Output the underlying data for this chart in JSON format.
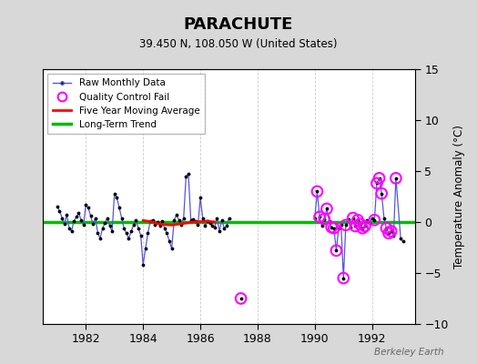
{
  "title": "PARACHUTE",
  "subtitle": "39.450 N, 108.050 W (United States)",
  "ylabel": "Temperature Anomaly (°C)",
  "watermark": "Berkeley Earth",
  "ylim": [
    -10,
    15
  ],
  "xlim": [
    1980.5,
    1993.5
  ],
  "yticks": [
    -10,
    -5,
    0,
    5,
    10,
    15
  ],
  "xticks": [
    1982,
    1984,
    1986,
    1988,
    1990,
    1992
  ],
  "bg_color": "#d8d8d8",
  "plot_bg_color": "#ffffff",
  "raw_segments": [
    [
      [
        1981.0,
        1.5
      ],
      [
        1981.083,
        1.1
      ],
      [
        1981.167,
        0.4
      ],
      [
        1981.25,
        -0.2
      ],
      [
        1981.333,
        0.7
      ],
      [
        1981.417,
        -0.6
      ],
      [
        1981.5,
        -0.9
      ],
      [
        1981.583,
        0.1
      ],
      [
        1981.667,
        0.5
      ],
      [
        1981.75,
        0.9
      ],
      [
        1981.833,
        0.2
      ],
      [
        1981.917,
        -0.3
      ],
      [
        1982.0,
        1.7
      ],
      [
        1982.083,
        1.4
      ],
      [
        1982.167,
        0.6
      ],
      [
        1982.25,
        -0.2
      ],
      [
        1982.333,
        0.4
      ],
      [
        1982.417,
        -1.1
      ],
      [
        1982.5,
        -1.6
      ],
      [
        1982.583,
        -0.6
      ],
      [
        1982.667,
        -0.1
      ],
      [
        1982.75,
        0.4
      ],
      [
        1982.833,
        -0.4
      ],
      [
        1982.917,
        -0.9
      ],
      [
        1983.0,
        2.8
      ],
      [
        1983.083,
        2.4
      ],
      [
        1983.167,
        1.4
      ],
      [
        1983.25,
        0.4
      ],
      [
        1983.333,
        -0.6
      ],
      [
        1983.417,
        -1.1
      ],
      [
        1983.5,
        -1.6
      ],
      [
        1983.583,
        -0.9
      ],
      [
        1983.667,
        -0.3
      ],
      [
        1983.75,
        0.2
      ],
      [
        1983.833,
        -0.6
      ],
      [
        1983.917,
        -1.3
      ],
      [
        1984.0,
        -4.2
      ],
      [
        1984.083,
        -2.6
      ],
      [
        1984.167,
        -1.1
      ],
      [
        1984.25,
        0.1
      ],
      [
        1984.333,
        0.2
      ],
      [
        1984.417,
        -0.3
      ],
      [
        1984.5,
        0.0
      ],
      [
        1984.583,
        -0.4
      ],
      [
        1984.667,
        0.1
      ],
      [
        1984.75,
        -0.6
      ],
      [
        1984.833,
        -1.1
      ],
      [
        1984.917,
        -1.9
      ],
      [
        1985.0,
        -2.6
      ],
      [
        1985.083,
        0.2
      ],
      [
        1985.167,
        0.7
      ],
      [
        1985.25,
        0.2
      ],
      [
        1985.333,
        -0.3
      ],
      [
        1985.417,
        0.4
      ],
      [
        1985.5,
        4.5
      ],
      [
        1985.583,
        4.7
      ],
      [
        1985.667,
        0.2
      ],
      [
        1985.75,
        0.3
      ],
      [
        1985.833,
        0.1
      ],
      [
        1985.917,
        -0.3
      ],
      [
        1986.0,
        2.4
      ],
      [
        1986.083,
        0.4
      ],
      [
        1986.167,
        -0.4
      ],
      [
        1986.25,
        0.1
      ],
      [
        1986.333,
        -0.1
      ],
      [
        1986.417,
        -0.4
      ],
      [
        1986.5,
        -0.5
      ],
      [
        1986.583,
        0.4
      ],
      [
        1986.667,
        -0.9
      ],
      [
        1986.75,
        0.2
      ],
      [
        1986.833,
        -0.6
      ],
      [
        1986.917,
        -0.4
      ],
      [
        1987.0,
        0.4
      ]
    ],
    [
      [
        1987.417,
        -7.5
      ]
    ],
    [
      [
        1990.0,
        0.4
      ],
      [
        1990.083,
        3.0
      ],
      [
        1990.167,
        0.5
      ],
      [
        1990.25,
        -0.4
      ],
      [
        1990.333,
        0.3
      ],
      [
        1990.417,
        1.3
      ],
      [
        1990.5,
        0.1
      ],
      [
        1990.583,
        -0.5
      ],
      [
        1990.667,
        -0.6
      ],
      [
        1990.75,
        -2.8
      ],
      [
        1990.833,
        -0.6
      ],
      [
        1990.917,
        -0.3
      ],
      [
        1991.0,
        -5.5
      ],
      [
        1991.083,
        -0.3
      ],
      [
        1991.167,
        0.3
      ],
      [
        1991.25,
        -0.5
      ],
      [
        1991.333,
        0.4
      ],
      [
        1991.417,
        -0.4
      ],
      [
        1991.5,
        0.2
      ],
      [
        1991.583,
        -0.2
      ],
      [
        1991.667,
        -0.6
      ],
      [
        1991.75,
        -0.4
      ],
      [
        1991.833,
        0.2
      ],
      [
        1991.917,
        -0.1
      ],
      [
        1992.0,
        0.4
      ],
      [
        1992.083,
        0.2
      ],
      [
        1992.167,
        3.8
      ],
      [
        1992.25,
        4.3
      ],
      [
        1992.333,
        2.8
      ],
      [
        1992.417,
        0.4
      ],
      [
        1992.5,
        -0.6
      ],
      [
        1992.583,
        -1.1
      ],
      [
        1992.667,
        -0.9
      ],
      [
        1992.75,
        -1.3
      ],
      [
        1992.833,
        4.3
      ],
      [
        1993.0,
        -1.6
      ],
      [
        1993.083,
        -1.9
      ]
    ]
  ],
  "qc_fail_x": [
    1987.417,
    1990.083,
    1990.167,
    1990.333,
    1990.417,
    1990.583,
    1990.667,
    1990.75,
    1991.0,
    1991.083,
    1991.333,
    1991.417,
    1991.5,
    1991.583,
    1991.667,
    1991.75,
    1992.083,
    1992.167,
    1992.25,
    1992.333,
    1992.5,
    1992.583,
    1992.667,
    1992.833
  ],
  "qc_fail_y": [
    -7.5,
    3.0,
    0.5,
    0.3,
    1.3,
    -0.5,
    -0.6,
    -2.8,
    -5.5,
    -0.3,
    0.4,
    -0.4,
    0.2,
    -0.2,
    -0.6,
    -0.4,
    0.2,
    3.8,
    4.3,
    2.8,
    -0.6,
    -1.1,
    -0.9,
    4.3
  ],
  "moving_avg_x": [
    1984.0,
    1984.25,
    1984.5,
    1984.75,
    1985.0,
    1985.25,
    1985.5,
    1985.75,
    1986.0,
    1986.25,
    1986.5
  ],
  "moving_avg_y": [
    0.15,
    0.05,
    -0.15,
    -0.25,
    -0.3,
    -0.2,
    -0.1,
    0.0,
    0.05,
    0.1,
    0.0
  ],
  "long_trend_x": [
    1980.5,
    1993.5
  ],
  "long_trend_y": [
    0.0,
    0.0
  ]
}
